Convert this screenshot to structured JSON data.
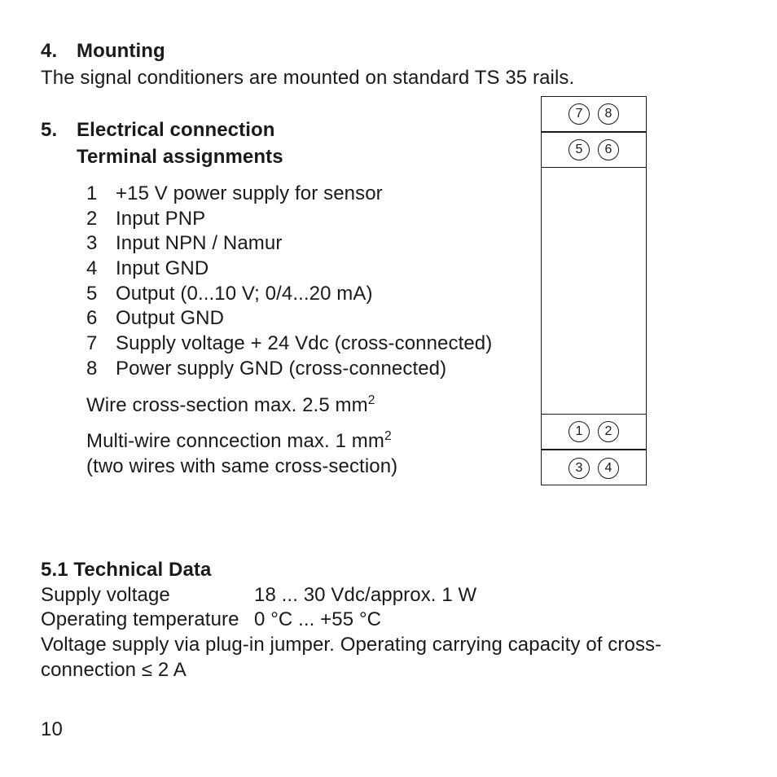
{
  "section4": {
    "num": "4.",
    "title": "Mounting",
    "body": "The signal conditioners are mounted on standard TS 35 rails."
  },
  "section5": {
    "num": "5.",
    "title": "Electrical connection",
    "subtitle": "Terminal assignments",
    "terminals": [
      {
        "n": "1",
        "t": "+15 V power supply for sensor"
      },
      {
        "n": "2",
        "t": "Input PNP"
      },
      {
        "n": "3",
        "t": "Input NPN / Namur"
      },
      {
        "n": "4",
        "t": "Input GND"
      },
      {
        "n": "5",
        "t": "Output  (0...10 V; 0/4...20 mA)"
      },
      {
        "n": "6",
        "t": "Output GND"
      },
      {
        "n": "7",
        "t": "Supply voltage + 24 Vdc (cross-connected)"
      },
      {
        "n": "8",
        "t": "Power supply GND (cross-connected)"
      }
    ],
    "wire_note_pre": "Wire cross-section max. 2.5 mm",
    "wire_note_sup": "2",
    "multi_note_pre": "Multi-wire conncection max. 1 mm",
    "multi_note_sup": "2",
    "multi_note2": "(two wires with same cross-section)"
  },
  "section51": {
    "head": "5.1  Technical Data",
    "rows": [
      {
        "label": "Supply voltage",
        "value": "18 ... 30 Vdc/approx. 1 W"
      },
      {
        "label": "Operating temperature",
        "value": "0 °C ... +55 °C"
      }
    ],
    "tail": "Voltage supply via plug-in jumper. Operating carrying capacity of cross-connection ≤ 2 A"
  },
  "diagram": {
    "top1": [
      "7",
      "8"
    ],
    "top2": [
      "5",
      "6"
    ],
    "bot1": [
      "1",
      "2"
    ],
    "bot2": [
      "3",
      "4"
    ]
  },
  "page": "10"
}
